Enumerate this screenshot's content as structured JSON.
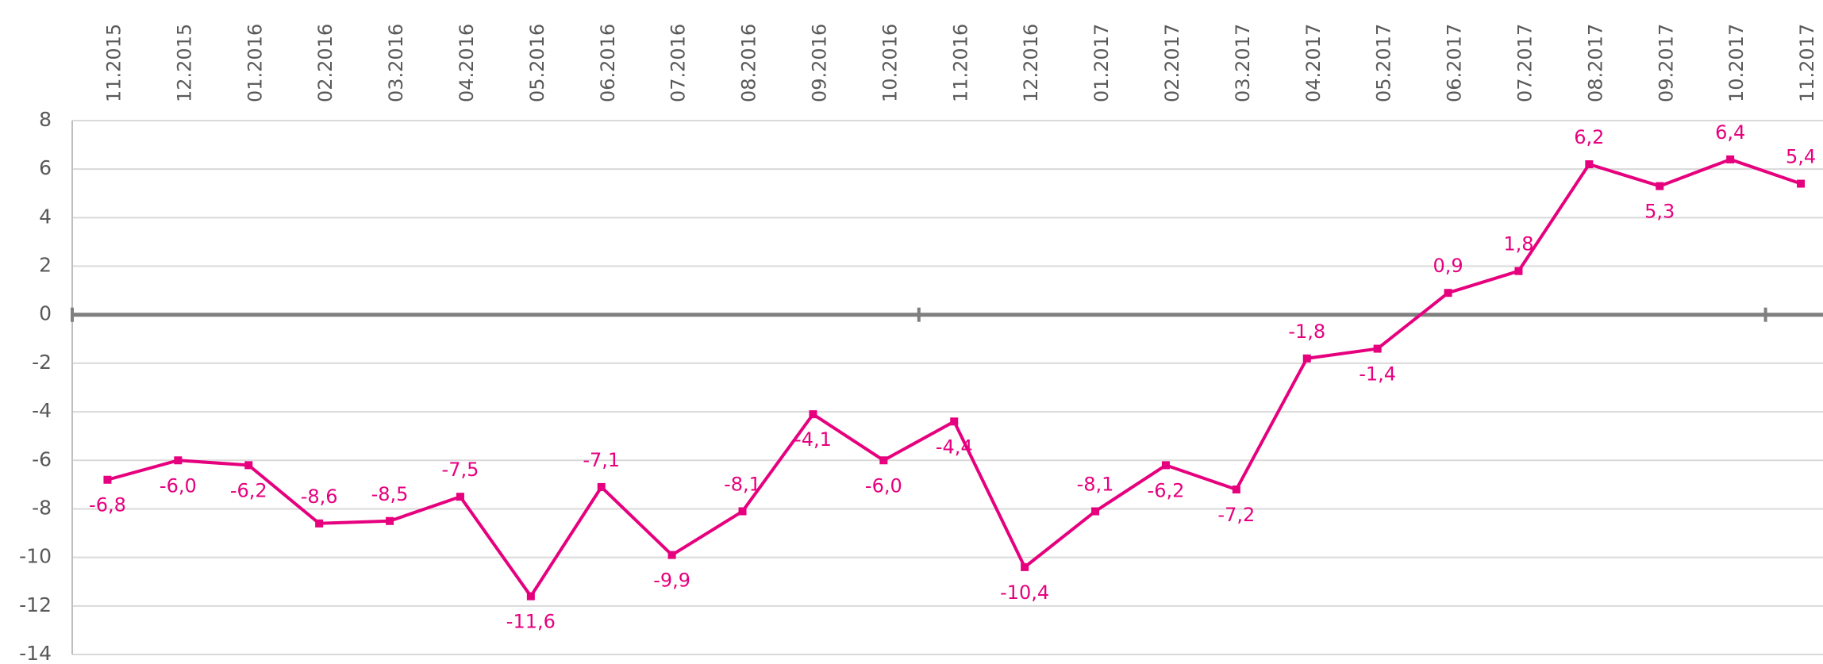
{
  "chart_data": {
    "type": "line",
    "categories": [
      "11.2015",
      "12.2015",
      "01.2016",
      "02.2016",
      "03.2016",
      "04.2016",
      "05.2016",
      "06.2016",
      "07.2016",
      "08.2016",
      "09.2016",
      "10.2016",
      "11.2016",
      "12.2016",
      "01.2017",
      "02.2017",
      "03.2017",
      "04.2017",
      "05.2017",
      "06.2017",
      "07.2017",
      "08.2017",
      "09.2017",
      "10.2017",
      "11.2017"
    ],
    "series": [
      {
        "color": "#e6007e",
        "values": [
          -6.8,
          -6.0,
          -6.2,
          -8.6,
          -8.5,
          -7.5,
          -11.6,
          -7.1,
          -9.9,
          -8.1,
          -4.1,
          -6.0,
          -4.4,
          -10.4,
          -8.1,
          -6.2,
          -7.2,
          -1.8,
          -1.4,
          0.9,
          1.8,
          6.2,
          5.3,
          6.4,
          5.4
        ],
        "value_labels": [
          "-6,8",
          "-6,0",
          "-6,2",
          "-8,6",
          "-8,5",
          "-7,5",
          "-11,6",
          "-7,1",
          "-9,9",
          "-8,1",
          "-4,1",
          "-6,0",
          "-4,4",
          "-10,4",
          "-8,1",
          "-6,2",
          "-7,2",
          "-1,8",
          "-1,4",
          "0,9",
          "1,8",
          "6,2",
          "5,3",
          "6,4",
          "5,4"
        ]
      }
    ],
    "ylim": [
      -14,
      8
    ],
    "yticks": [
      8,
      6,
      4,
      2,
      0,
      -2,
      -4,
      -6,
      -8,
      -10,
      -12,
      -14
    ],
    "grid": true
  }
}
